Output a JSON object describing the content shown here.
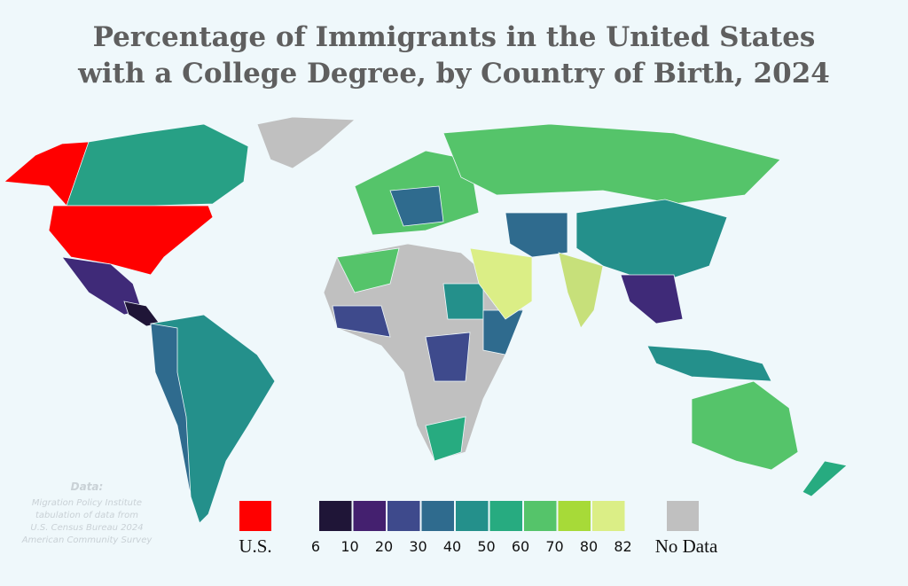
{
  "title": [
    "Percentage of Immigrants in the United States",
    "with a College Degree, by Country of Birth, 2024"
  ],
  "legend": {
    "us_label": "U.S.",
    "us_color": "#ff0000",
    "bins": [
      6,
      10,
      20,
      30,
      40,
      50,
      60,
      70,
      80,
      82
    ],
    "colors": [
      "#1f1537",
      "#44206f",
      "#3e4a8c",
      "#2f6b8e",
      "#24908b",
      "#27ab80",
      "#55c46a",
      "#a7da38",
      "#dbee86"
    ],
    "no_data_label": "No Data",
    "no_data_color": "#c0c0c0"
  },
  "source": [
    "Data:",
    "Migration Policy Institute",
    "tabulation of data from",
    "U.S. Census Bureau 2024",
    "American Community Survey"
  ]
}
